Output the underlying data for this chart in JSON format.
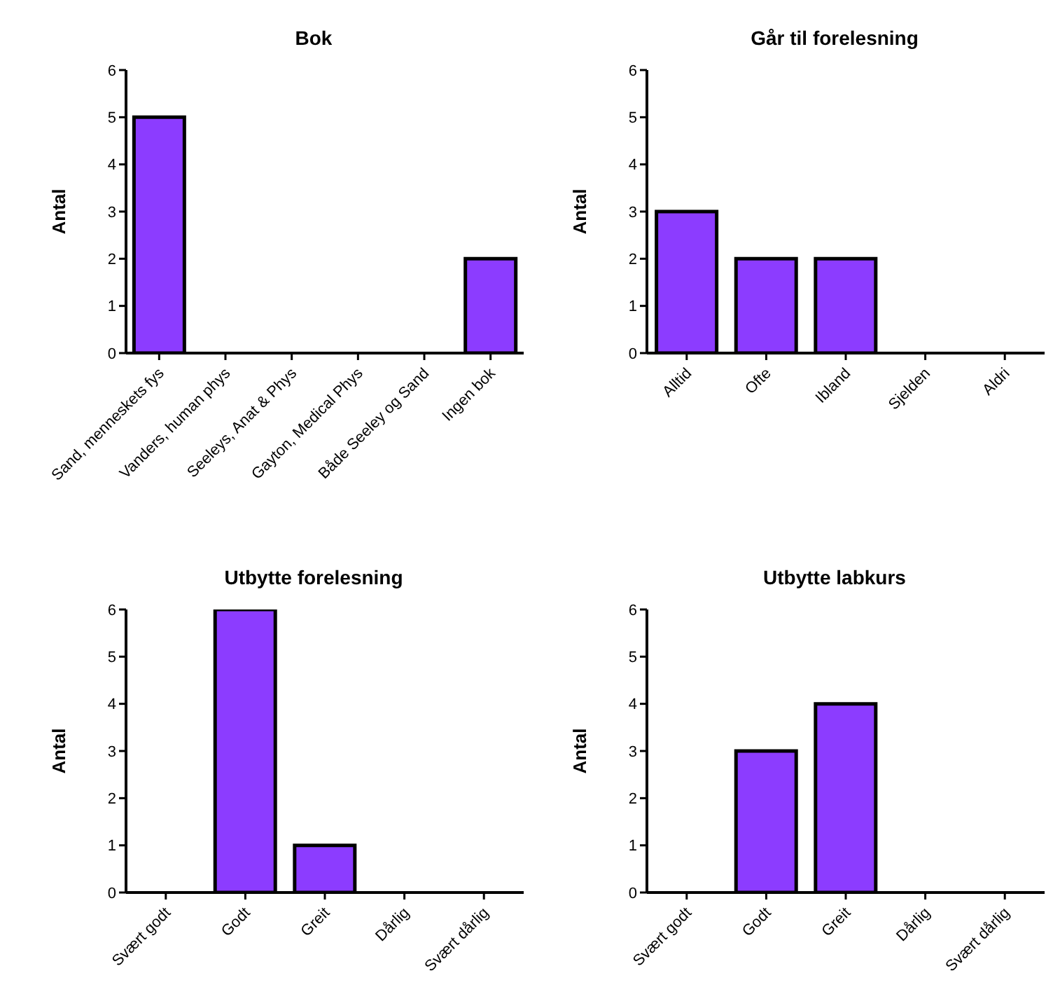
{
  "chart_data": [
    {
      "type": "bar",
      "title": "Bok",
      "ylabel": "Antal",
      "categories": [
        "Sand, menneskets fys",
        "Vanders, human phys",
        "Seeleys, Anat & Phys",
        "Gayton, Medical Phys",
        "Både Seeley og Sand",
        "Ingen bok"
      ],
      "values": [
        5,
        0,
        0,
        0,
        0,
        2
      ],
      "color": "#8c3cff",
      "ylim": [
        0,
        6
      ],
      "yticks": [
        0,
        1,
        2,
        3,
        4,
        5,
        6
      ],
      "grid": false,
      "legend": false
    },
    {
      "type": "bar",
      "title": "Går til forelesning",
      "ylabel": "Antal",
      "categories": [
        "Alltid",
        "Ofte",
        "Ibland",
        "Sjelden",
        "Aldri"
      ],
      "values": [
        3,
        2,
        2,
        0,
        0
      ],
      "color": "#8c3cff",
      "ylim": [
        0,
        6
      ],
      "yticks": [
        0,
        1,
        2,
        3,
        4,
        5,
        6
      ],
      "grid": false,
      "legend": false
    },
    {
      "type": "bar",
      "title": "Utbytte forelesning",
      "ylabel": "Antal",
      "categories": [
        "Svært godt",
        "Godt",
        "Greit",
        "Dårlig",
        "Svært dårlig"
      ],
      "values": [
        0,
        6,
        1,
        0,
        0
      ],
      "color": "#8c3cff",
      "ylim": [
        0,
        6
      ],
      "yticks": [
        0,
        1,
        2,
        3,
        4,
        5,
        6
      ],
      "grid": false,
      "legend": false
    },
    {
      "type": "bar",
      "title": "Utbytte labkurs",
      "ylabel": "Antal",
      "categories": [
        "Svært godt",
        "Godt",
        "Greit",
        "Dårlig",
        "Svært dårlig"
      ],
      "values": [
        0,
        3,
        4,
        0,
        0
      ],
      "color": "#8c3cff",
      "ylim": [
        0,
        6
      ],
      "yticks": [
        0,
        1,
        2,
        3,
        4,
        5,
        6
      ],
      "grid": false,
      "legend": false
    }
  ]
}
